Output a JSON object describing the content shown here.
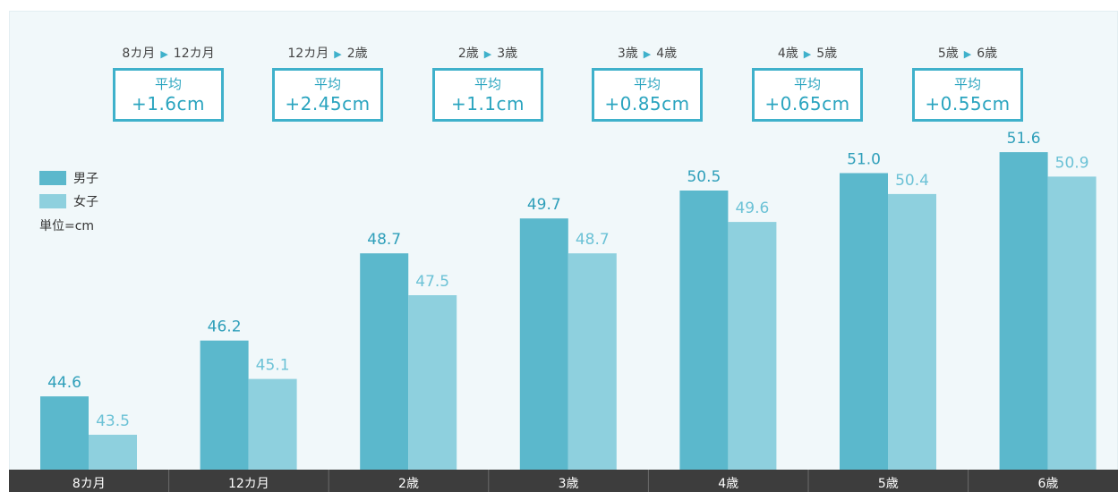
{
  "chart_data": {
    "type": "bar",
    "categories": [
      "8カ月",
      "12カ月",
      "2歳",
      "3歳",
      "4歳",
      "5歳",
      "6歳"
    ],
    "series": [
      {
        "name": "男子",
        "values": [
          44.6,
          46.2,
          48.7,
          49.7,
          50.5,
          51.0,
          51.6
        ],
        "labels": [
          "44.6",
          "46.2",
          "48.7",
          "49.7",
          "50.5",
          "51.0",
          "51.6"
        ],
        "color": "#5bb8cc"
      },
      {
        "name": "女子",
        "values": [
          43.5,
          45.1,
          47.5,
          48.7,
          49.6,
          50.4,
          50.9
        ],
        "labels": [
          "43.5",
          "45.1",
          "47.5",
          "48.7",
          "49.6",
          "50.4",
          "50.9"
        ],
        "color": "#8ed0de"
      }
    ],
    "unit_label": "単位=cm",
    "ylim": [
      42.5,
      52.5
    ],
    "grid": false,
    "legend_position": "top-left"
  },
  "increments": [
    {
      "from": "8カ月",
      "to": "12カ月",
      "title": "平均",
      "value": "+1.6cm"
    },
    {
      "from": "12カ月",
      "to": "2歳",
      "title": "平均",
      "value": "+2.45cm"
    },
    {
      "from": "2歳",
      "to": "3歳",
      "title": "平均",
      "value": "+1.1cm"
    },
    {
      "from": "3歳",
      "to": "4歳",
      "title": "平均",
      "value": "+0.85cm"
    },
    {
      "from": "4歳",
      "to": "5歳",
      "title": "平均",
      "value": "+0.65cm"
    },
    {
      "from": "5歳",
      "to": "6歳",
      "title": "平均",
      "value": "+0.55cm"
    }
  ],
  "colors": {
    "boys": "#5bb8cc",
    "girls": "#8ed0de",
    "boys_label": "#2f9fba",
    "girls_label": "#6cc2d6",
    "accent": "#3fb1cb",
    "axis_band": "#3d3d3d"
  }
}
